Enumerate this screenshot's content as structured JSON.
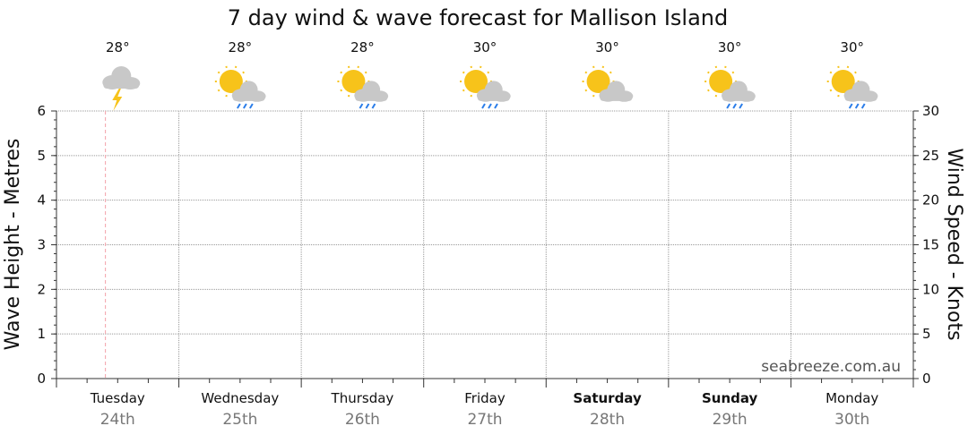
{
  "chart_data": {
    "type": "line",
    "title": "7 day wind & wave forecast for Mallison Island",
    "ylabel_left": "Wave Height - Metres",
    "ylabel_right": "Wind Speed - Knots",
    "ylim_left": [
      0,
      6
    ],
    "ylim_right": [
      0,
      30
    ],
    "yticks_left": [
      "0",
      "1",
      "2",
      "3",
      "4",
      "5",
      "6"
    ],
    "yticks_right": [
      "0",
      "5",
      "10",
      "15",
      "20",
      "25",
      "30"
    ],
    "grid": true,
    "days": [
      {
        "day": "Tuesday",
        "date": "24th",
        "temp": "28°",
        "icon": "storm-cloud-icon",
        "bold": false
      },
      {
        "day": "Wednesday",
        "date": "25th",
        "temp": "28°",
        "icon": "sun-cloud-rain-icon",
        "bold": false
      },
      {
        "day": "Thursday",
        "date": "26th",
        "temp": "28°",
        "icon": "sun-cloud-rain-icon",
        "bold": false
      },
      {
        "day": "Friday",
        "date": "27th",
        "temp": "30°",
        "icon": "sun-cloud-rain-icon",
        "bold": false
      },
      {
        "day": "Saturday",
        "date": "28th",
        "temp": "30°",
        "icon": "sun-cloud-icon",
        "bold": true
      },
      {
        "day": "Sunday",
        "date": "29th",
        "temp": "30°",
        "icon": "sun-cloud-rain-icon",
        "bold": true
      },
      {
        "day": "Monday",
        "date": "30th",
        "temp": "30°",
        "icon": "sun-cloud-rain-icon",
        "bold": false
      }
    ],
    "series": [],
    "current_time_marker_day": 0.4,
    "watermark": "seabreeze.com.au",
    "colors": {
      "grid": "#999999",
      "now_marker": "#f2a0a8",
      "sun": "#f7c31a",
      "cloud": "#c8c8c8",
      "cloud_dark": "#a7a7a7",
      "rain": "#2b7de9",
      "bolt": "#f7c31a"
    }
  }
}
